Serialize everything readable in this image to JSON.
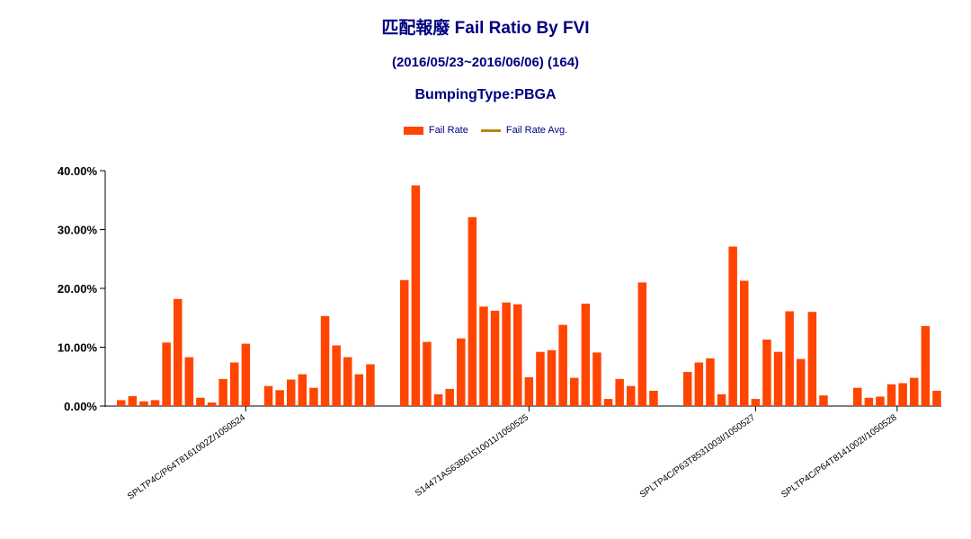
{
  "header": {
    "title": "匹配報廢 Fail Ratio By FVI",
    "subtitle": "(2016/05/23~2016/06/06) (164)",
    "subtitle2": "BumpingType:PBGA"
  },
  "legend": {
    "fail_rate": "Fail Rate",
    "fail_rate_avg": "Fail Rate Avg."
  },
  "colors": {
    "bar": "#ff4500",
    "avg_line": "#b8860b",
    "title": "#000080",
    "axis": "#000000"
  },
  "chart_data": {
    "type": "bar",
    "ylim": [
      0,
      40
    ],
    "y_ticks": [
      "0.00%",
      "10.00%",
      "20.00%",
      "30.00%",
      "40.00%"
    ],
    "y_tick_values": [
      0,
      10,
      20,
      30,
      40
    ],
    "grid": false,
    "legend_position": "top",
    "groups": [
      {
        "label": "SPLTP4C/P64T8161002Z/1050524",
        "values": [
          1.0,
          1.7,
          0.8,
          1.0,
          10.8,
          18.2,
          8.3,
          1.4,
          0.6,
          4.6,
          7.4,
          10.6,
          null,
          3.4,
          2.7,
          4.5,
          5.4,
          3.1,
          15.3,
          10.3,
          8.3,
          5.4,
          7.1
        ]
      },
      {
        "label": "S14471AS63B61510011/1050525",
        "values": [
          21.4,
          37.5,
          10.9,
          2.0,
          2.9,
          11.5,
          32.1,
          16.9,
          16.2,
          17.6,
          17.3,
          4.9,
          9.2,
          9.5,
          13.8,
          4.8,
          17.4,
          9.1,
          1.2,
          4.6,
          3.4,
          21.0,
          2.6
        ]
      },
      {
        "label": "SPLTP4C/P63T8531003I/1050527",
        "values": [
          5.8,
          7.4,
          8.1,
          2.0,
          27.1,
          21.3,
          1.2,
          11.3,
          9.2,
          16.1,
          8.0,
          16.0,
          1.8
        ]
      },
      {
        "label": "SPLTP4C/P64T8141002I/1050528",
        "values": [
          3.1,
          1.4,
          1.6,
          3.7,
          3.9,
          4.8,
          13.6,
          2.6
        ]
      }
    ]
  }
}
